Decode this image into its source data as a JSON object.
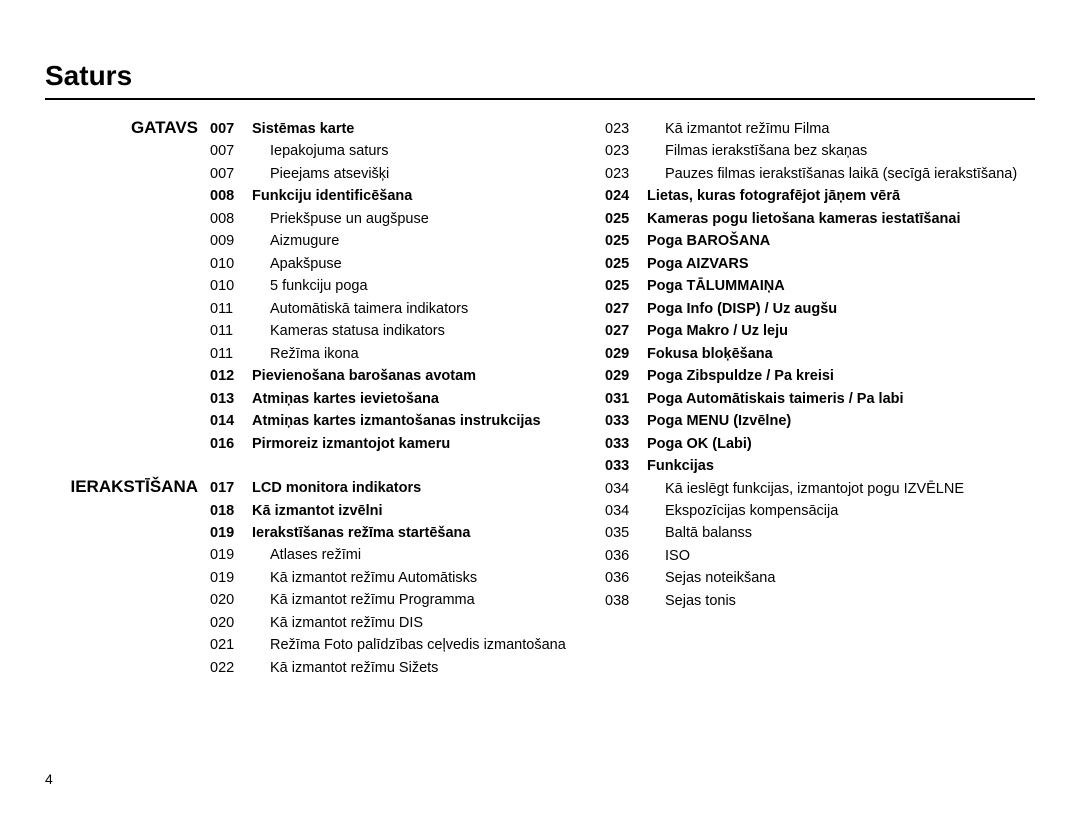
{
  "title": "Saturs",
  "page_number": "4",
  "fonts": {
    "title_size": 28,
    "body_size": 14.5,
    "section_label_size": 17
  },
  "colors": {
    "text": "#000000",
    "background": "#ffffff",
    "rule": "#000000"
  },
  "left_sections": [
    {
      "heading": "GATAVS",
      "rows": [
        {
          "num": "007",
          "label": "Sistēmas karte",
          "bold": true
        },
        {
          "num": "007",
          "label": "Iepakojuma saturs",
          "indent": true
        },
        {
          "num": "007",
          "label": "Pieejams atsevišķi",
          "indent": true
        },
        {
          "num": "008",
          "label": "Funkciju identificēšana",
          "bold": true
        },
        {
          "num": "008",
          "label": "Priekšpuse un augšpuse",
          "indent": true
        },
        {
          "num": "009",
          "label": "Aizmugure",
          "indent": true
        },
        {
          "num": "010",
          "label": "Apakšpuse",
          "indent": true
        },
        {
          "num": "010",
          "label": "5 funkciju poga",
          "indent": true
        },
        {
          "num": "011",
          "label": "Automātiskā taimera indikators",
          "indent": true
        },
        {
          "num": "011",
          "label": "Kameras statusa indikators",
          "indent": true
        },
        {
          "num": "011",
          "label": "Režīma ikona",
          "indent": true
        },
        {
          "num": "012",
          "label": "Pievienošana barošanas avotam",
          "bold": true
        },
        {
          "num": "013",
          "label": "Atmiņas kartes ievietošana",
          "bold": true
        },
        {
          "num": "014",
          "label": "Atmiņas kartes izmantošanas instrukcijas",
          "bold": true
        },
        {
          "num": "016",
          "label": "Pirmoreiz izmantojot kameru",
          "bold": true
        }
      ]
    },
    {
      "heading": "IERAKSTĪŠANA",
      "rows": [
        {
          "num": "017",
          "label": "LCD monitora indikators",
          "bold": true
        },
        {
          "num": "018",
          "label": "Kā izmantot izvēlni",
          "bold": true
        },
        {
          "num": "019",
          "label": "Ierakstīšanas režīma startēšana",
          "bold": true
        },
        {
          "num": "019",
          "label": "Atlases režīmi",
          "indent": true
        },
        {
          "num": "019",
          "label": "Kā izmantot režīmu Automātisks",
          "indent": true
        },
        {
          "num": "020",
          "label": "Kā izmantot režīmu Programma",
          "indent": true
        },
        {
          "num": "020",
          "label": "Kā izmantot režīmu DIS",
          "indent": true
        },
        {
          "num": "021",
          "label": "Režīma Foto palīdzības ceļvedis izmantošana",
          "indent": true
        },
        {
          "num": "022",
          "label": "Kā izmantot režīmu Sižets",
          "indent": true
        }
      ]
    }
  ],
  "right_rows": [
    {
      "num": "023",
      "label": "Kā izmantot režīmu Filma",
      "indent": true
    },
    {
      "num": "023",
      "label": "Filmas ierakstīšana bez skaņas",
      "indent": true
    },
    {
      "num": "023",
      "label": "Pauzes filmas ierakstīšanas laikā (secīgā ierakstīšana)",
      "indent": true
    },
    {
      "num": "024",
      "label": "Lietas, kuras fotografējot jāņem vērā",
      "bold": true
    },
    {
      "num": "025",
      "label": "Kameras pogu lietošana kameras iestatīšanai",
      "bold": true
    },
    {
      "num": "025",
      "label": "Poga BAROŠANA",
      "bold": true
    },
    {
      "num": "025",
      "label": "Poga AIZVARS",
      "bold": true
    },
    {
      "num": "025",
      "label": "Poga TĀLUMMAIŅA",
      "bold": true
    },
    {
      "num": "027",
      "label": "Poga Info (DISP) / Uz augšu",
      "bold": true
    },
    {
      "num": "027",
      "label": "Poga Makro / Uz leju",
      "bold": true
    },
    {
      "num": "029",
      "label": "Fokusa bloķēšana",
      "bold": true
    },
    {
      "num": "029",
      "label": "Poga Zibspuldze / Pa kreisi",
      "bold": true
    },
    {
      "num": "031",
      "label": "Poga Automātiskais taimeris / Pa labi",
      "bold": true
    },
    {
      "num": "033",
      "label": "Poga MENU (Izvēlne)",
      "bold": true
    },
    {
      "num": "033",
      "label": "Poga OK (Labi)",
      "bold": true
    },
    {
      "num": "033",
      "label": "Funkcijas",
      "bold": true
    },
    {
      "num": "034",
      "label": "Kā ieslēgt funkcijas, izmantojot pogu IZVĒLNE",
      "indent": true
    },
    {
      "num": "034",
      "label": "Ekspozīcijas kompensācija",
      "indent": true
    },
    {
      "num": "035",
      "label": "Baltā balanss",
      "indent": true
    },
    {
      "num": "036",
      "label": "ISO",
      "indent": true
    },
    {
      "num": "036",
      "label": "Sejas noteikšana",
      "indent": true
    },
    {
      "num": "038",
      "label": "Sejas tonis",
      "indent": true
    }
  ]
}
